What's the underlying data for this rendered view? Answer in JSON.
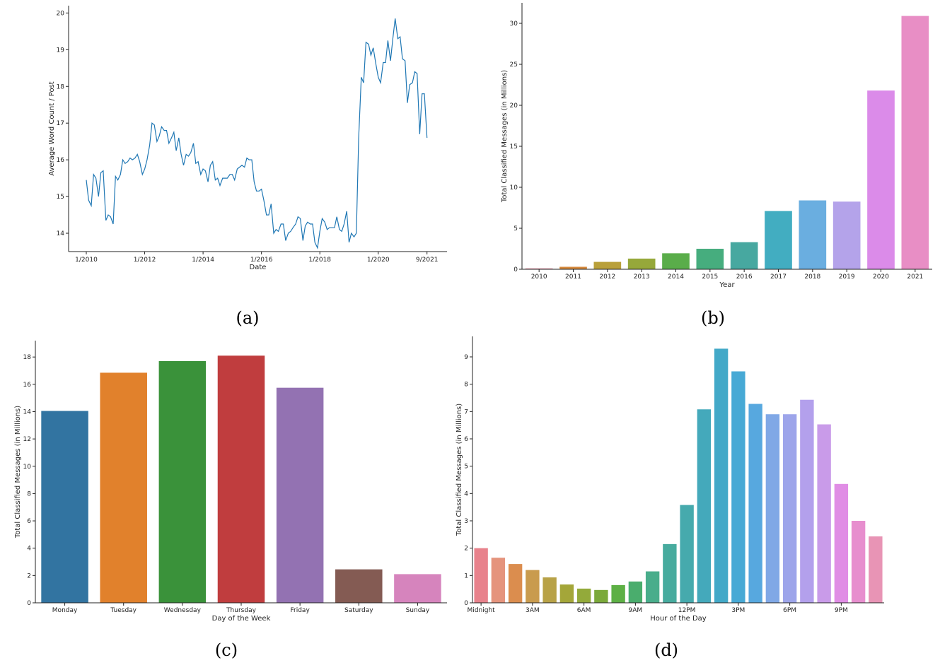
{
  "chart_data": [
    {
      "panel_label": "(a)",
      "type": "line",
      "xlabel": "Date",
      "ylabel": "Average Word Count / Post",
      "xlim": [
        2010.0,
        2021.75
      ],
      "ylim": [
        13.5,
        20.2
      ],
      "x_ticks": [
        {
          "label": "1/2010",
          "value": 2010.0
        },
        {
          "label": "1/2012",
          "value": 2012.0
        },
        {
          "label": "1/2014",
          "value": 2014.0
        },
        {
          "label": "1/2016",
          "value": 2016.0
        },
        {
          "label": "1/2018",
          "value": 2018.0
        },
        {
          "label": "1/2020",
          "value": 2020.0
        },
        {
          "label": "9/2021",
          "value": 2021.67
        }
      ],
      "y_ticks": [
        14,
        15,
        16,
        17,
        18,
        19,
        20
      ],
      "color": "#1f77b4",
      "x": [
        2010.0,
        2010.08,
        2010.17,
        2010.25,
        2010.33,
        2010.42,
        2010.5,
        2010.58,
        2010.67,
        2010.75,
        2010.83,
        2010.92,
        2011.0,
        2011.08,
        2011.17,
        2011.25,
        2011.33,
        2011.42,
        2011.5,
        2011.58,
        2011.67,
        2011.75,
        2011.83,
        2011.92,
        2012.0,
        2012.08,
        2012.17,
        2012.25,
        2012.33,
        2012.42,
        2012.5,
        2012.58,
        2012.67,
        2012.75,
        2012.83,
        2012.92,
        2013.0,
        2013.08,
        2013.17,
        2013.25,
        2013.33,
        2013.42,
        2013.5,
        2013.58,
        2013.67,
        2013.75,
        2013.83,
        2013.92,
        2014.0,
        2014.08,
        2014.17,
        2014.25,
        2014.33,
        2014.42,
        2014.5,
        2014.58,
        2014.67,
        2014.75,
        2014.83,
        2014.92,
        2015.0,
        2015.08,
        2015.17,
        2015.25,
        2015.33,
        2015.42,
        2015.5,
        2015.58,
        2015.67,
        2015.75,
        2015.83,
        2015.92,
        2016.0,
        2016.08,
        2016.17,
        2016.25,
        2016.33,
        2016.42,
        2016.5,
        2016.58,
        2016.67,
        2016.75,
        2016.83,
        2016.92,
        2017.0,
        2017.08,
        2017.17,
        2017.25,
        2017.33,
        2017.42,
        2017.5,
        2017.58,
        2017.67,
        2017.75,
        2017.83,
        2017.92,
        2018.0,
        2018.08,
        2018.17,
        2018.25,
        2018.33,
        2018.42,
        2018.5,
        2018.58,
        2018.67,
        2018.75,
        2018.83,
        2018.92,
        2019.0,
        2019.08,
        2019.17,
        2019.25,
        2019.33,
        2019.42,
        2019.5,
        2019.58,
        2019.67,
        2019.75,
        2019.83,
        2019.92,
        2020.0,
        2020.08,
        2020.17,
        2020.25,
        2020.33,
        2020.42,
        2020.5,
        2020.58,
        2020.67,
        2020.75,
        2020.83,
        2020.92,
        2021.0,
        2021.08,
        2021.17,
        2021.25,
        2021.33,
        2021.42,
        2021.5,
        2021.58,
        2021.67
      ],
      "y": [
        15.45,
        14.9,
        14.75,
        15.6,
        15.5,
        15.0,
        15.65,
        15.7,
        14.35,
        14.5,
        14.45,
        14.25,
        15.55,
        15.45,
        15.6,
        16.0,
        15.9,
        15.95,
        16.05,
        16.0,
        16.05,
        16.15,
        15.95,
        15.6,
        15.75,
        16.0,
        16.4,
        17.0,
        16.95,
        16.5,
        16.65,
        16.9,
        16.8,
        16.8,
        16.45,
        16.6,
        16.75,
        16.25,
        16.6,
        16.15,
        15.85,
        16.15,
        16.1,
        16.2,
        16.45,
        15.9,
        15.95,
        15.6,
        15.75,
        15.7,
        15.4,
        15.85,
        15.95,
        15.45,
        15.5,
        15.3,
        15.5,
        15.5,
        15.5,
        15.6,
        15.6,
        15.45,
        15.75,
        15.8,
        15.85,
        15.8,
        16.05,
        16.0,
        16.0,
        15.4,
        15.15,
        15.15,
        15.2,
        14.9,
        14.5,
        14.5,
        14.8,
        14.0,
        14.1,
        14.05,
        14.25,
        14.25,
        13.8,
        14.0,
        14.05,
        14.15,
        14.25,
        14.45,
        14.4,
        13.8,
        14.2,
        14.3,
        14.25,
        14.25,
        13.75,
        13.6,
        14.05,
        14.4,
        14.3,
        14.1,
        14.15,
        14.15,
        14.15,
        14.45,
        14.1,
        14.05,
        14.25,
        14.6,
        13.75,
        14.0,
        13.9,
        14.0,
        16.6,
        18.25,
        18.1,
        19.2,
        19.15,
        18.85,
        19.05,
        18.6,
        18.25,
        18.1,
        18.65,
        18.65,
        19.25,
        18.7,
        19.3,
        19.85,
        19.3,
        19.35,
        18.75,
        18.7,
        17.55,
        18.05,
        18.1,
        18.4,
        18.35,
        16.7,
        17.8,
        17.8,
        16.6
      ]
    },
    {
      "panel_label": "(b)",
      "type": "bar",
      "xlabel": "Year",
      "ylabel": "Total Classified Messages (in Millions)",
      "ylim": [
        0,
        32.5
      ],
      "y_ticks": [
        0,
        5,
        10,
        15,
        20,
        25,
        30
      ],
      "categories": [
        "2010",
        "2011",
        "2012",
        "2013",
        "2014",
        "2015",
        "2016",
        "2017",
        "2018",
        "2019",
        "2020",
        "2021"
      ],
      "values": [
        0.1,
        0.3,
        0.9,
        1.3,
        1.95,
        2.5,
        3.3,
        7.1,
        8.4,
        8.25,
        21.8,
        30.9
      ],
      "colors": [
        "#e07b91",
        "#d68a3d",
        "#b9a03a",
        "#96a83a",
        "#5aad4a",
        "#46ad7e",
        "#47a8a0",
        "#42adc1",
        "#6aaee0",
        "#b4a3ea",
        "#db8be9",
        "#e88ec5"
      ]
    },
    {
      "panel_label": "(c)",
      "type": "bar",
      "xlabel": "Day of the Week",
      "ylabel": "Total Classified Messages (in Millions)",
      "ylim": [
        0,
        19.2
      ],
      "y_ticks": [
        0,
        2,
        4,
        6,
        8,
        10,
        12,
        14,
        16,
        18
      ],
      "categories": [
        "Monday",
        "Tuesday",
        "Wednesday",
        "Thursday",
        "Friday",
        "Saturday",
        "Sunday"
      ],
      "values": [
        14.05,
        16.85,
        17.7,
        18.1,
        15.75,
        2.45,
        2.1
      ],
      "colors": [
        "#3274a1",
        "#e1812c",
        "#3a923a",
        "#c03d3e",
        "#9372b2",
        "#845b53",
        "#d684bd"
      ]
    },
    {
      "panel_label": "(d)",
      "type": "bar",
      "xlabel": "Hour of the Day",
      "ylabel": "Total Classified Messages (in Millions)",
      "ylim": [
        0,
        9.75
      ],
      "y_ticks": [
        0,
        1,
        2,
        3,
        4,
        5,
        6,
        7,
        8,
        9
      ],
      "categories": [
        "Midnight",
        "",
        "",
        "3AM",
        "",
        "",
        "6AM",
        "",
        "",
        "9AM",
        "",
        "",
        "12PM",
        "",
        "",
        "3PM",
        "",
        "",
        "6PM",
        "",
        "",
        "9PM",
        "",
        ""
      ],
      "values": [
        2.0,
        1.65,
        1.42,
        1.2,
        0.93,
        0.67,
        0.52,
        0.47,
        0.65,
        0.78,
        1.15,
        2.15,
        3.58,
        7.08,
        9.3,
        8.47,
        7.28,
        6.9,
        6.9,
        7.43,
        6.53,
        4.35,
        3.0,
        2.43
      ],
      "colors": [
        "#e8828c",
        "#e5947d",
        "#db8d4e",
        "#c99b4e",
        "#b8a247",
        "#a4a639",
        "#93aa3a",
        "#7ba93a",
        "#5db045",
        "#4aad6d",
        "#49ad8b",
        "#47ab9e",
        "#46aaad",
        "#44a9bb",
        "#43a9c8",
        "#47a9d5",
        "#57a8df",
        "#80a8e6",
        "#9da5ea",
        "#b3a0ec",
        "#c99be9",
        "#e08de5",
        "#e78ece",
        "#e894b5"
      ]
    }
  ]
}
